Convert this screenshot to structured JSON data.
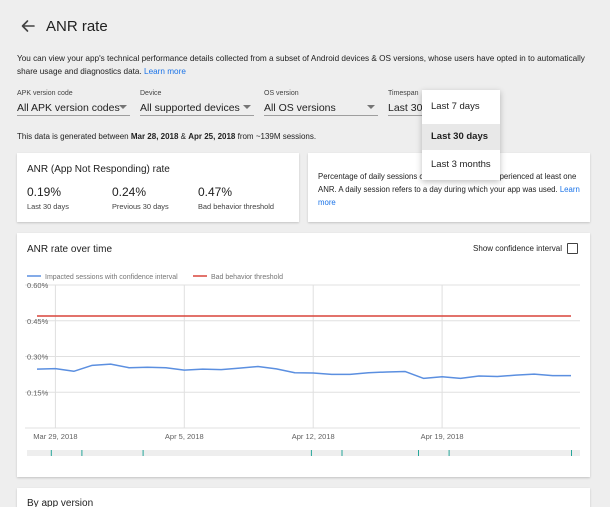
{
  "header": {
    "title": "ANR rate",
    "back_icon": "arrow-left-icon"
  },
  "intro": {
    "text": "You can view your app's technical performance details collected from a subset of Android devices & OS versions, whose users have opted in to automatically share usage and diagnostics data.",
    "learn_more": "Learn more"
  },
  "filters": {
    "apk": {
      "label": "APK version code",
      "value": "All APK version codes"
    },
    "device": {
      "label": "Device",
      "value": "All supported devices"
    },
    "os": {
      "label": "OS version",
      "value": "All OS versions"
    },
    "timespan": {
      "label": "Timespan",
      "value": "Last 30"
    }
  },
  "timespan_menu": {
    "options": [
      "Last 7 days",
      "Last 30 days",
      "Last 3 months"
    ],
    "selected": "Last 30 days"
  },
  "generated": {
    "prefix": "This data is generated between ",
    "start": "Mar 28, 2018",
    "amp": " & ",
    "end": "Apr 25, 2018",
    "suffix": " from ~139M sessions."
  },
  "anr_card": {
    "title": "ANR (App Not Responding) rate",
    "metrics": [
      {
        "value": "0.19%",
        "label": "Last 30 days"
      },
      {
        "value": "0.24%",
        "label": "Previous 30 days"
      },
      {
        "value": "0.47%",
        "label": "Bad behavior threshold"
      }
    ]
  },
  "info_card": {
    "text_a": "Percentage of daily sessions c",
    "text_b": "experienced at least one ANR. A daily session refers to a day during which your app was used.",
    "learn_more": "Learn more"
  },
  "chart_card": {
    "title": "ANR rate over time",
    "confidence_label": "Show confidence interval",
    "bottom_title": "By app version"
  },
  "chart_data": {
    "type": "line",
    "series": [
      {
        "name": "Impacted sessions with confidence interval",
        "color": "#5b8fe0",
        "values": [
          0.247,
          0.249,
          0.238,
          0.263,
          0.268,
          0.253,
          0.255,
          0.253,
          0.243,
          0.247,
          0.245,
          0.251,
          0.258,
          0.248,
          0.232,
          0.231,
          0.225,
          0.225,
          0.232,
          0.235,
          0.237,
          0.208,
          0.215,
          0.208,
          0.218,
          0.216,
          0.222,
          0.226,
          0.22,
          0.22
        ]
      }
    ],
    "threshold": {
      "name": "Bad behavior threshold",
      "value": 0.47,
      "color": "#d9443a"
    },
    "y_ticks": [
      "0.60%",
      "0.45%",
      "0.30%",
      "0.15%"
    ],
    "ylim": [
      0,
      0.6
    ],
    "x_ticks": [
      "Mar 29, 2018",
      "Apr 5, 2018",
      "Apr 12, 2018",
      "Apr 19, 2018"
    ],
    "grid": true
  }
}
